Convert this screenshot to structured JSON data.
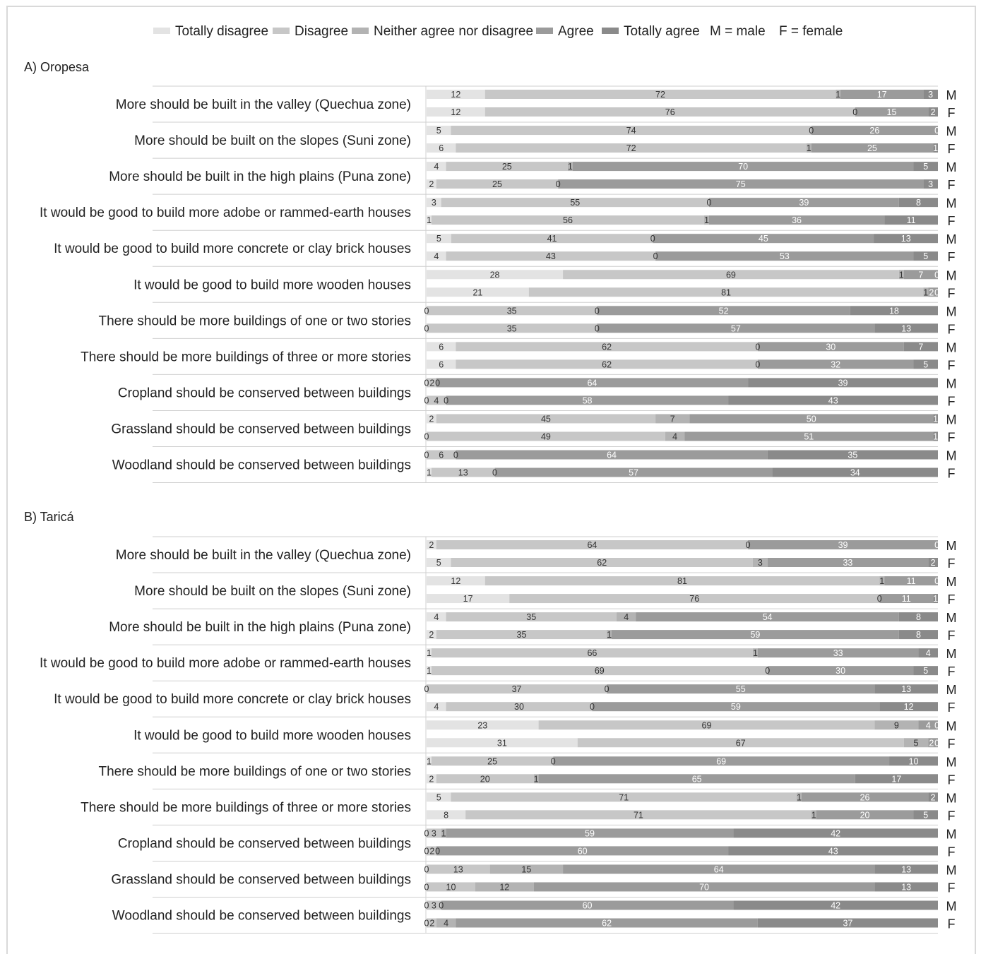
{
  "chart_data": {
    "type": "bar",
    "orientation": "horizontal-stacked",
    "legend": {
      "placement": "top",
      "items": [
        "Totally disagree",
        "Disagree",
        "Neither agree nor disagree",
        "Agree",
        "Totally agree"
      ],
      "notes": [
        "M = male",
        "F = female"
      ]
    },
    "gender_labels": {
      "male": "M",
      "female": "F"
    },
    "colors": [
      "#e3e3e3",
      "#c7c7c7",
      "#b3b3b3",
      "#9b9b9b",
      "#8a8a8a"
    ],
    "label_colors": [
      "#333333",
      "#333333",
      "#333333",
      "#ffffff",
      "#ffffff"
    ],
    "panels": [
      {
        "title": "A) Oropesa",
        "categories": [
          "More should be built in the valley (Quechua zone)",
          "More should be built on the slopes (Suni zone)",
          "More should be built in the high plains (Puna zone)",
          "It would be good to build more adobe or rammed-earth houses",
          "It would be good to build more concrete or clay brick houses",
          "It would be good to build more wooden houses",
          "There should be more buildings of one or two stories",
          "There should be more buildings of three or more stories",
          "Cropland should be conserved between buildings",
          "Grassland should be conserved between buildings",
          "Woodland should be conserved between buildings"
        ],
        "male": [
          [
            12,
            72,
            1,
            17,
            3
          ],
          [
            5,
            74,
            0,
            26,
            0
          ],
          [
            4,
            25,
            1,
            70,
            5
          ],
          [
            3,
            55,
            0,
            39,
            8
          ],
          [
            5,
            41,
            0,
            45,
            13
          ],
          [
            28,
            69,
            1,
            7,
            0
          ],
          [
            0,
            35,
            0,
            52,
            18
          ],
          [
            6,
            62,
            0,
            30,
            7
          ],
          [
            0,
            2,
            0,
            64,
            39
          ],
          [
            2,
            45,
            7,
            50,
            1
          ],
          [
            0,
            6,
            0,
            64,
            35
          ]
        ],
        "female": [
          [
            12,
            76,
            0,
            15,
            2
          ],
          [
            6,
            72,
            1,
            25,
            1
          ],
          [
            2,
            25,
            0,
            75,
            3
          ],
          [
            1,
            56,
            1,
            36,
            11
          ],
          [
            4,
            43,
            0,
            53,
            5
          ],
          [
            21,
            81,
            1,
            2,
            0
          ],
          [
            0,
            35,
            0,
            57,
            13
          ],
          [
            6,
            62,
            0,
            32,
            5
          ],
          [
            0,
            4,
            0,
            58,
            43
          ],
          [
            0,
            49,
            4,
            51,
            1
          ],
          [
            1,
            13,
            0,
            57,
            34
          ]
        ]
      },
      {
        "title": "B) Taricá",
        "categories": [
          "More should be built in the valley (Quechua zone)",
          "More should be built on the slopes (Suni zone)",
          "More should be built in the high plains (Puna zone)",
          "It would be good to build more adobe or rammed-earth houses",
          "It would be good to build more concrete or clay brick houses",
          "It would be good to build more wooden houses",
          "There should be more buildings of one or two stories",
          "There should be more buildings of three or more stories",
          "Cropland should be conserved between buildings",
          "Grassland should be conserved between buildings",
          "Woodland should be conserved between buildings"
        ],
        "male": [
          [
            2,
            64,
            0,
            39,
            0
          ],
          [
            12,
            81,
            1,
            11,
            0
          ],
          [
            4,
            35,
            4,
            54,
            8
          ],
          [
            1,
            66,
            1,
            33,
            4
          ],
          [
            0,
            37,
            0,
            55,
            13
          ],
          [
            23,
            69,
            9,
            4,
            0
          ],
          [
            1,
            25,
            0,
            69,
            10
          ],
          [
            5,
            71,
            1,
            26,
            2
          ],
          [
            0,
            3,
            1,
            59,
            42
          ],
          [
            0,
            13,
            15,
            64,
            13
          ],
          [
            0,
            3,
            0,
            60,
            42
          ]
        ],
        "female": [
          [
            5,
            62,
            3,
            33,
            2
          ],
          [
            17,
            76,
            0,
            11,
            1
          ],
          [
            2,
            35,
            1,
            59,
            8
          ],
          [
            1,
            69,
            0,
            30,
            5
          ],
          [
            4,
            30,
            0,
            59,
            12
          ],
          [
            31,
            67,
            5,
            2,
            0
          ],
          [
            2,
            20,
            1,
            65,
            17
          ],
          [
            8,
            71,
            1,
            20,
            5
          ],
          [
            0,
            2,
            0,
            60,
            43
          ],
          [
            0,
            10,
            12,
            70,
            13
          ],
          [
            0,
            2,
            4,
            62,
            37
          ]
        ]
      }
    ]
  }
}
